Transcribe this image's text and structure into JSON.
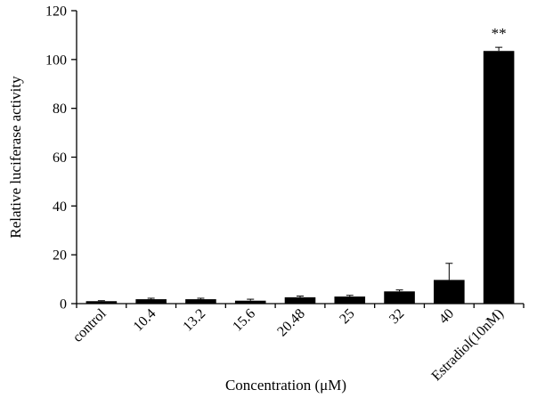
{
  "chart_data": {
    "type": "bar",
    "title": "",
    "xlabel": "Concentration (μM)",
    "ylabel": "Relative luciferase activity",
    "ylim": [
      0,
      120
    ],
    "yticks": [
      0,
      20,
      40,
      60,
      80,
      100,
      120
    ],
    "categories": [
      "control",
      "10.4",
      "13.2",
      "15.6",
      "20.48",
      "25",
      "32",
      "40",
      "Estradiol(10nM)"
    ],
    "values": [
      1.0,
      1.8,
      1.8,
      1.2,
      2.6,
      2.9,
      5.0,
      9.7,
      103.5
    ],
    "errors": [
      0.2,
      0.4,
      0.4,
      0.6,
      0.5,
      0.5,
      0.6,
      6.8,
      1.5
    ],
    "annotations": [
      {
        "category": "Estradiol(10nM)",
        "text": "**"
      }
    ],
    "grid": false,
    "legend": "none",
    "bar_color": "#000000"
  }
}
